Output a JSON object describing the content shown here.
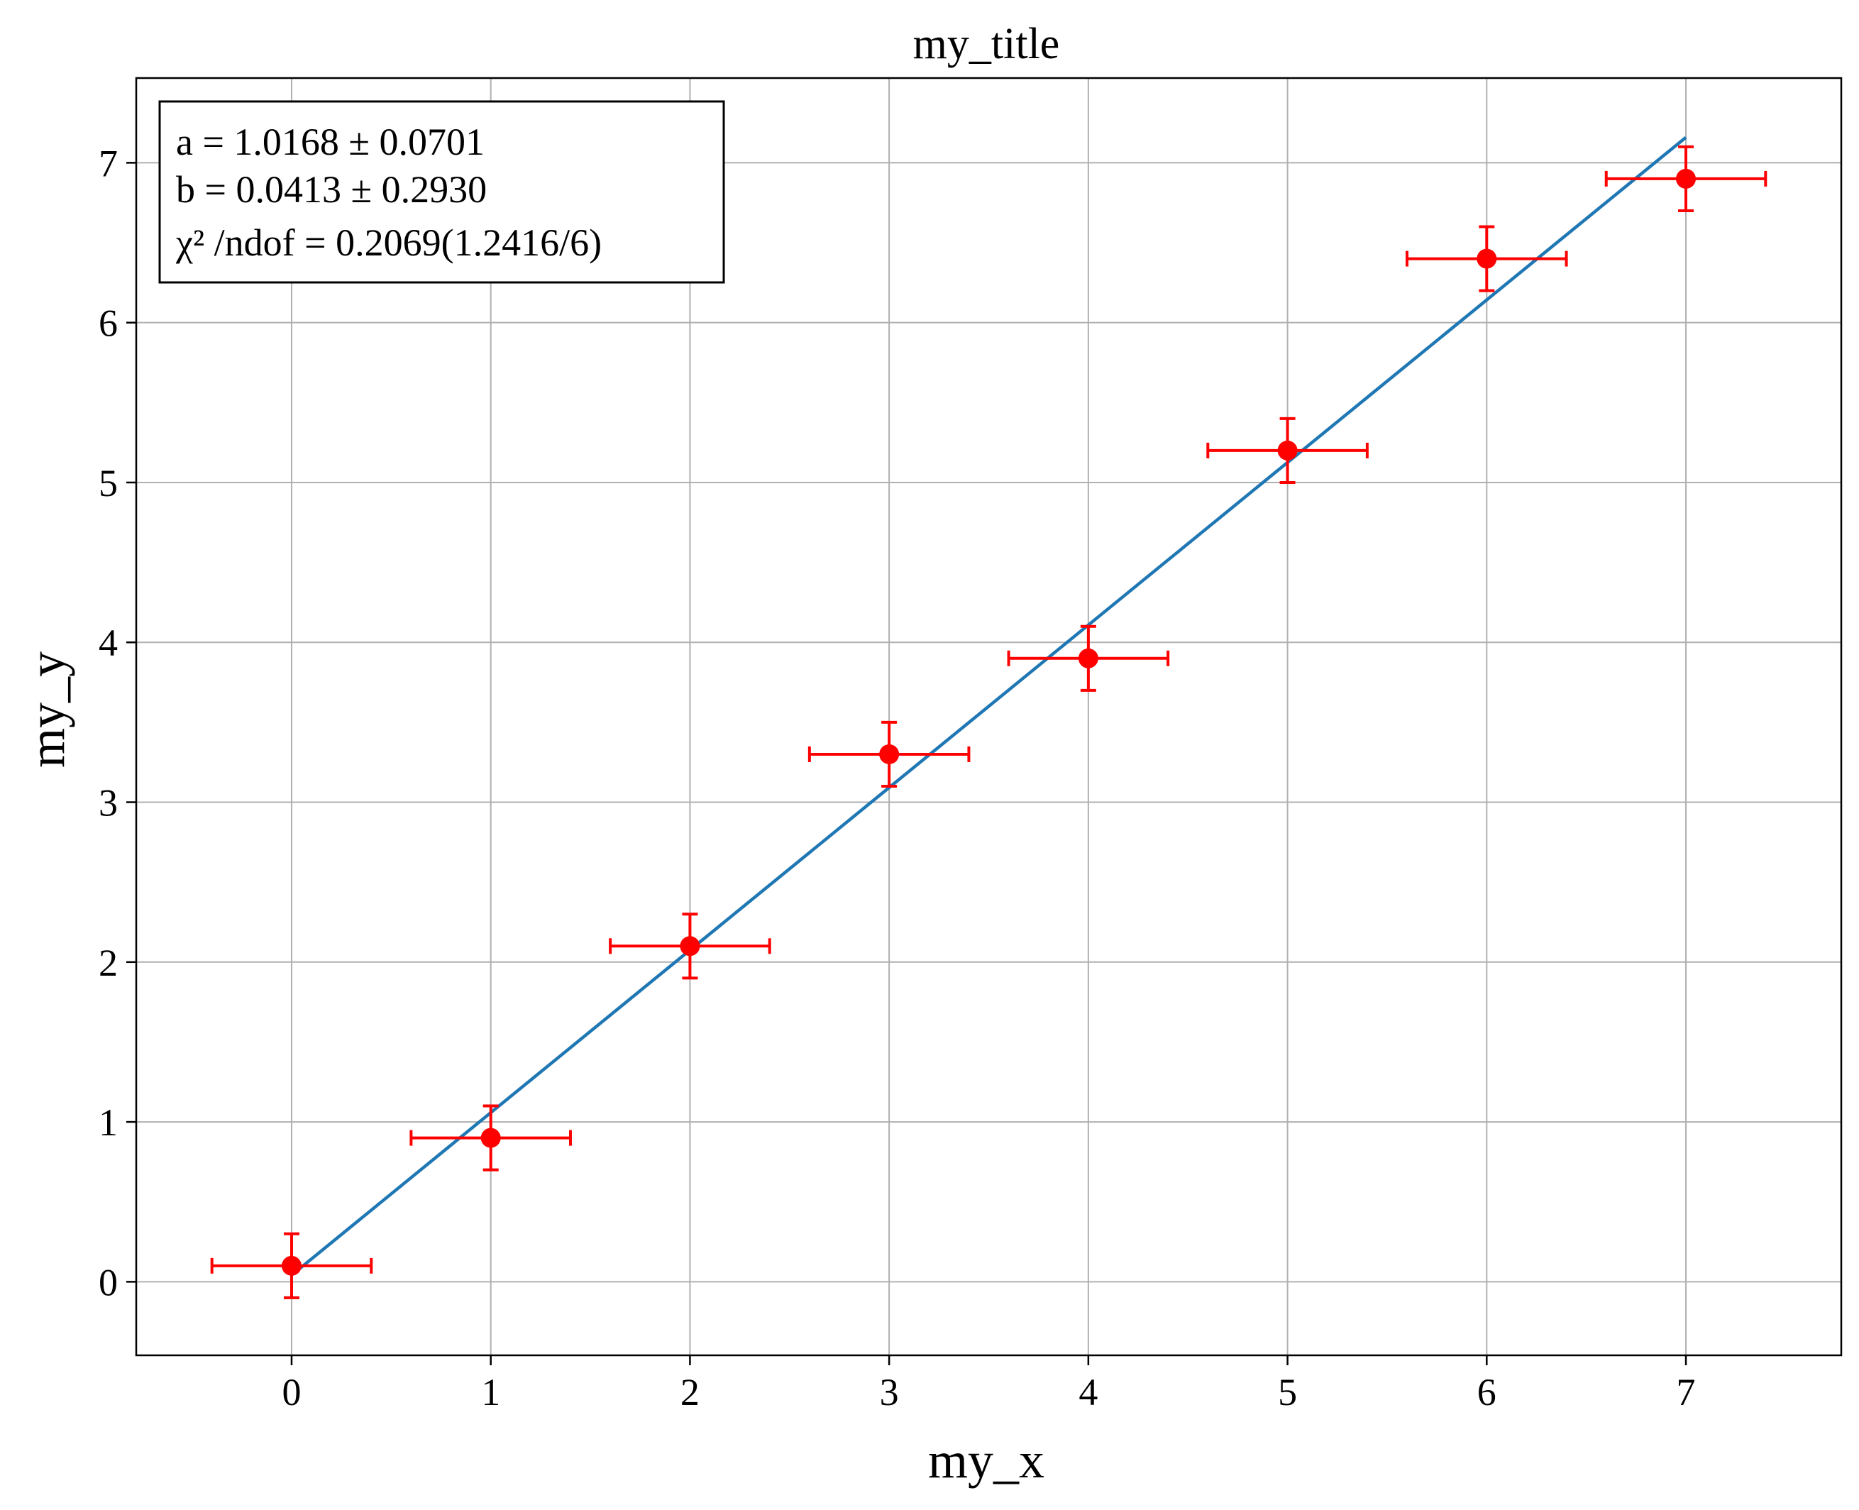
{
  "chart_data": {
    "type": "scatter",
    "title": "my_title",
    "xlabel": "my_x",
    "ylabel": "my_y",
    "xlim": [
      -0.78,
      7.78
    ],
    "ylim": [
      -0.46,
      7.53
    ],
    "x_ticks": [
      "0",
      "1",
      "2",
      "3",
      "4",
      "5",
      "6",
      "7"
    ],
    "y_ticks": [
      "0",
      "1",
      "2",
      "3",
      "4",
      "5",
      "6",
      "7"
    ],
    "grid": true,
    "series": [
      {
        "kind": "errorbar",
        "color": "#ff0000",
        "x": [
          0,
          1,
          2,
          3,
          4,
          5,
          6,
          7
        ],
        "y": [
          0.1,
          0.9,
          2.1,
          3.3,
          3.9,
          5.2,
          6.4,
          6.9
        ],
        "xerr": [
          0.4,
          0.4,
          0.4,
          0.4,
          0.4,
          0.4,
          0.4,
          0.4
        ],
        "yerr": [
          0.2,
          0.2,
          0.2,
          0.2,
          0.2,
          0.2,
          0.2,
          0.2
        ]
      },
      {
        "kind": "fit_line",
        "color": "#1f77b4",
        "slope": 1.0168,
        "intercept": 0.0413,
        "x_range": [
          0,
          7
        ]
      }
    ],
    "annotation": {
      "placement": "top-left",
      "lines": [
        "a = 1.0168 ± 0.0701",
        "b = 0.0413 ± 0.2930",
        "χ² /ndof = 0.2069(1.2416/6)"
      ]
    }
  }
}
